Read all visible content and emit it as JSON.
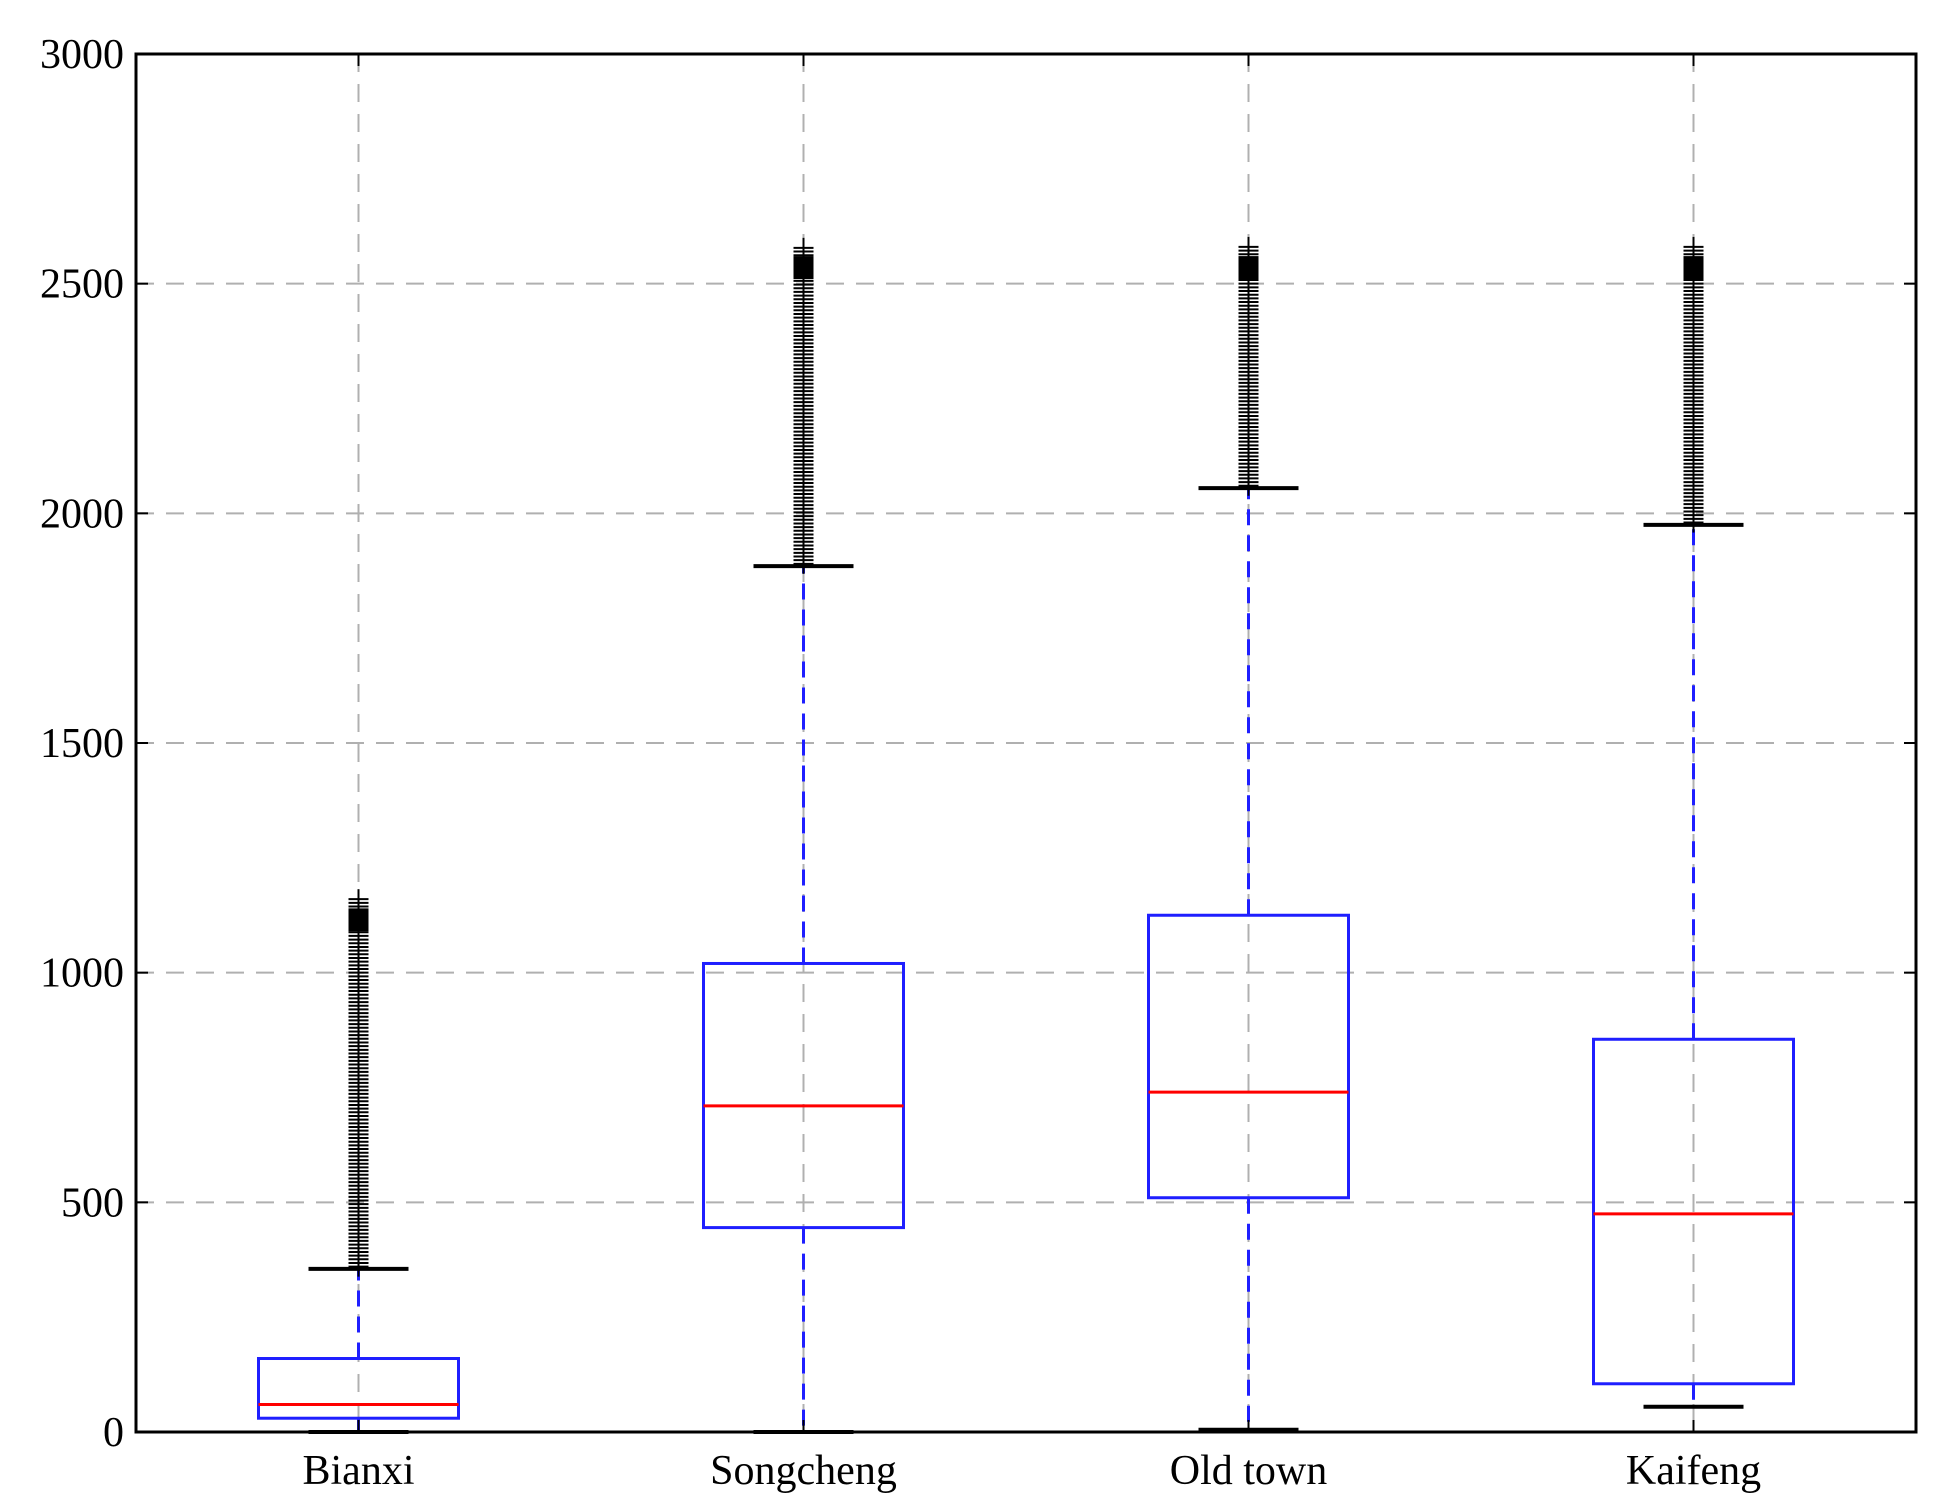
{
  "chart_data": {
    "type": "boxplot",
    "title": "",
    "xlabel": "",
    "ylabel": "",
    "ylim": [
      0,
      3000
    ],
    "yticks": [
      0,
      500,
      1000,
      1500,
      2000,
      2500,
      3000
    ],
    "grid": true,
    "categories": [
      "Bianxi",
      "Songcheng",
      "Old town",
      "Kaifeng"
    ],
    "boxes": [
      {
        "name": "Bianxi",
        "whisker_low": 0,
        "q1": 30,
        "median": 60,
        "q3": 160,
        "whisker_high": 355,
        "outliers_from": 360,
        "outliers_to": 1160
      },
      {
        "name": "Songcheng",
        "whisker_low": 0,
        "q1": 445,
        "median": 710,
        "q3": 1020,
        "whisker_high": 1885,
        "outliers_from": 1890,
        "outliers_to": 2580
      },
      {
        "name": "Old town",
        "whisker_low": 5,
        "q1": 510,
        "median": 740,
        "q3": 1125,
        "whisker_high": 2055,
        "outliers_from": 2060,
        "outliers_to": 2580
      },
      {
        "name": "Kaifeng",
        "whisker_low": 55,
        "q1": 105,
        "median": 475,
        "q3": 855,
        "whisker_high": 1975,
        "outliers_from": 1980,
        "outliers_to": 2580
      }
    ],
    "colors": {
      "box": "#1f1fff",
      "median": "#ff0000",
      "whisker_cap": "#000000",
      "outlier": "#000000",
      "grid": "#b0b0b0",
      "axis": "#000000"
    }
  }
}
